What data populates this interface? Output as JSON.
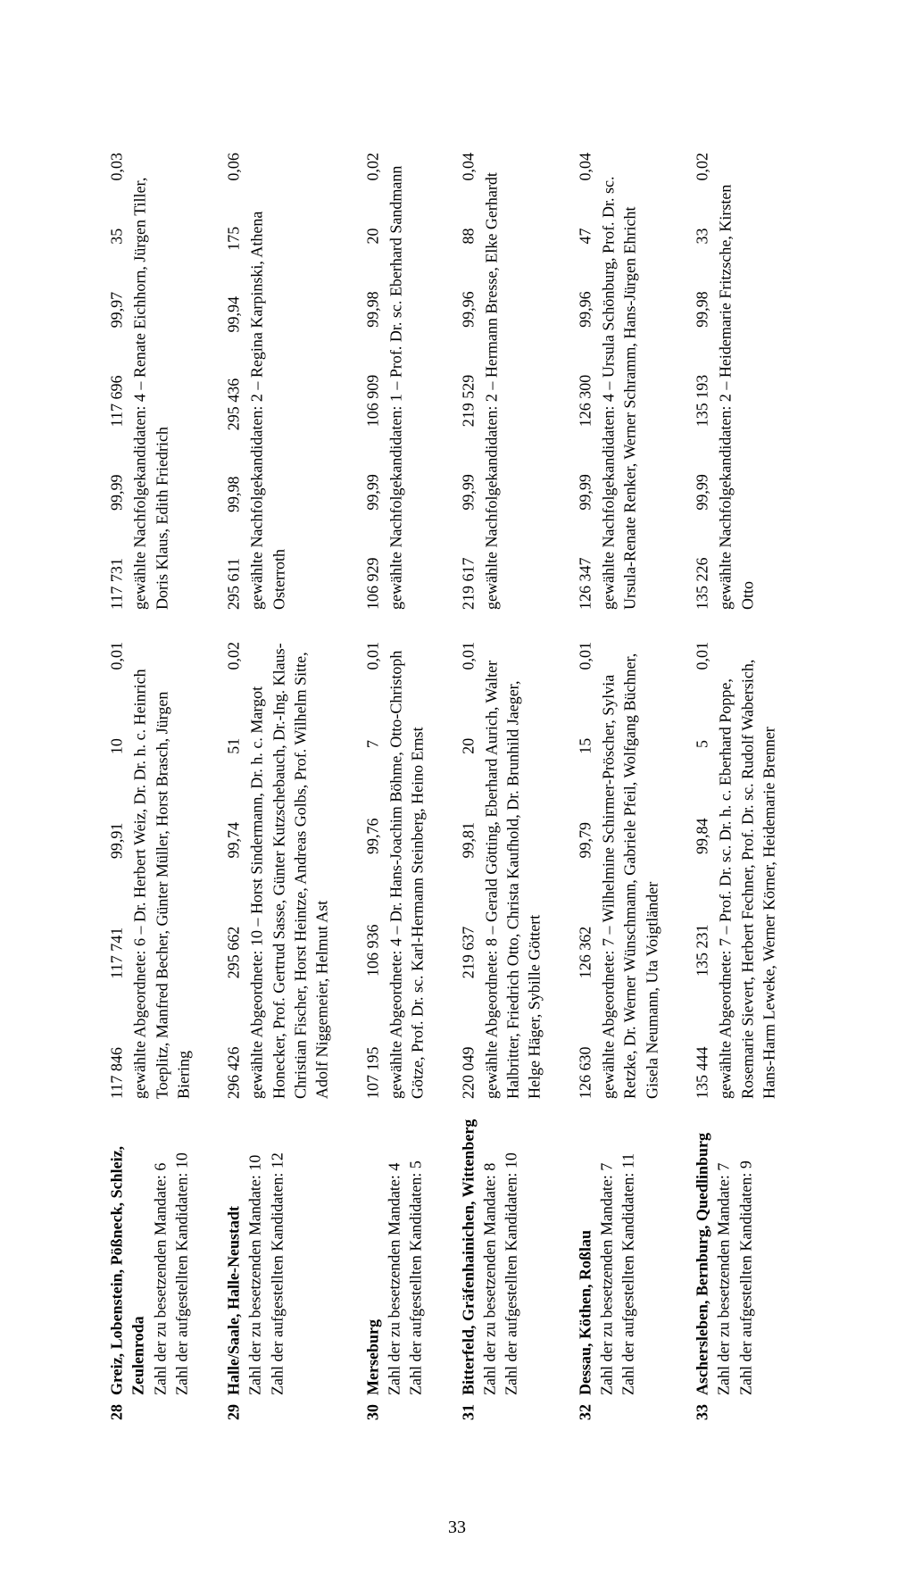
{
  "page_number": "33",
  "labels": {
    "mandate": "Zahl der zu besetzenden Mandate:",
    "kandidaten": "Zahl der aufgestellten Kandidaten:"
  },
  "entries": [
    {
      "num": "28",
      "name": "Greiz, Lobenstein, Pößneck, Schleiz, Zeulenroda",
      "mandate": "6",
      "kandidaten": "10",
      "left": {
        "n1": "117 846",
        "n2": "117 741",
        "n3": "99,91",
        "n4": "10",
        "n5": "0,01",
        "desc": "gewählte Abgeordnete: 6 – Dr. Herbert Weiz, Dr. Dr. h. c. Heinrich Toeplitz, Manfred Becher, Günter Müller, Horst Brasch, Jürgen Biering"
      },
      "right": {
        "n1": "117 731",
        "n2": "99,99",
        "n3": "117 696",
        "n4": "99,97",
        "n5": "35",
        "n6": "0,03",
        "desc": "gewählte Nachfolgekandidaten: 4 – Renate Eichhorn, Jürgen Tiller, Doris Klaus, Edith Friedrich"
      }
    },
    {
      "num": "29",
      "name": "Halle/Saale, Halle-Neustadt",
      "mandate": "10",
      "kandidaten": "12",
      "left": {
        "n1": "296 426",
        "n2": "295 662",
        "n3": "99,74",
        "n4": "51",
        "n5": "0,02",
        "desc": "gewählte Abgeordnete: 10 – Horst Sindermann, Dr. h. c. Margot Honecker, Prof. Gertrud Sasse, Günter Kutzschebauch, Dr.-Ing. Klaus-Christian Fischer, Horst Heintze, Andreas Golbs, Prof. Wilhelm Sitte, Adolf Niggemeier, Helmut Ast"
      },
      "right": {
        "n1": "295 611",
        "n2": "99,98",
        "n3": "295 436",
        "n4": "99,94",
        "n5": "175",
        "n6": "0,06",
        "desc": "gewählte Nachfolgekandidaten: 2 – Regina Karpinski, Athena Osterroth"
      }
    },
    {
      "num": "30",
      "name": "Merseburg",
      "mandate": "4",
      "kandidaten": "5",
      "left": {
        "n1": "107 195",
        "n2": "106 936",
        "n3": "99,76",
        "n4": "7",
        "n5": "0,01",
        "desc": "gewählte Abgeordnete: 4 – Dr. Hans-Joachim Böhme, Otto-Christoph Götze, Prof. Dr. sc. Karl-Hermann Steinberg, Heino Ernst"
      },
      "right": {
        "n1": "106 929",
        "n2": "99,99",
        "n3": "106 909",
        "n4": "99,98",
        "n5": "20",
        "n6": "0,02",
        "desc": "gewählte Nachfolgekandidaten: 1 – Prof. Dr. sc. Eberhard Sandmann"
      }
    },
    {
      "num": "31",
      "name": "Bitterfeld, Gräfenhainichen, Wittenberg",
      "mandate": "8",
      "kandidaten": "10",
      "left": {
        "n1": "220 049",
        "n2": "219 637",
        "n3": "99,81",
        "n4": "20",
        "n5": "0,01",
        "desc": "gewählte Abgeordnete: 8 – Gerald Götting, Eberhard Aurich, Walter Halbritter, Friedrich Otto, Christa Kaufhold, Dr. Brunhild Jaeger, Helge Häger, Sybille Göttert"
      },
      "right": {
        "n1": "219 617",
        "n2": "99,99",
        "n3": "219 529",
        "n4": "99,96",
        "n5": "88",
        "n6": "0,04",
        "desc": "gewählte Nachfolgekandidaten: 2 – Hermann Bresse, Elke Gerhardt"
      }
    },
    {
      "num": "32",
      "name": "Dessau, Köthen, Roßlau",
      "mandate": "7",
      "kandidaten": "11",
      "left": {
        "n1": "126 630",
        "n2": "126 362",
        "n3": "99,79",
        "n4": "15",
        "n5": "0,01",
        "desc": "gewählte Abgeordnete: 7 – Wilhelmine Schirmer-Pröscher, Sylvia Retzke, Dr. Werner Wünschmann, Gabriele Pfeil, Wolfgang Büchner, Gisela Neumann, Uta Voigtländer"
      },
      "right": {
        "n1": "126 347",
        "n2": "99,99",
        "n3": "126 300",
        "n4": "99,96",
        "n5": "47",
        "n6": "0,04",
        "desc": "gewählte Nachfolgekandidaten: 4 – Ursula Schönburg, Prof. Dr. sc. Ursula-Renate Renker, Werner Schramm, Hans-Jürgen Ehricht"
      }
    },
    {
      "num": "33",
      "name": "Aschersleben, Bernburg, Quedlinburg",
      "mandate": "7",
      "kandidaten": "9",
      "left": {
        "n1": "135 444",
        "n2": "135 231",
        "n3": "99,84",
        "n4": "5",
        "n5": "0,01",
        "desc": "gewählte Abgeordnete: 7 – Prof. Dr. sc. Dr. h. c. Eberhard Poppe, Rosemarie Sievert, Herbert Fechner, Prof. Dr. sc. Rudolf Wabersich, Hans-Harm Leweke, Werner Körner, Heidemarie Brenner"
      },
      "right": {
        "n1": "135 226",
        "n2": "99,99",
        "n3": "135 193",
        "n4": "99,98",
        "n5": "33",
        "n6": "0,02",
        "desc": "gewählte Nachfolgekandidaten: 2 – Heidemarie Fritzsche, Kirsten Otto"
      }
    }
  ]
}
